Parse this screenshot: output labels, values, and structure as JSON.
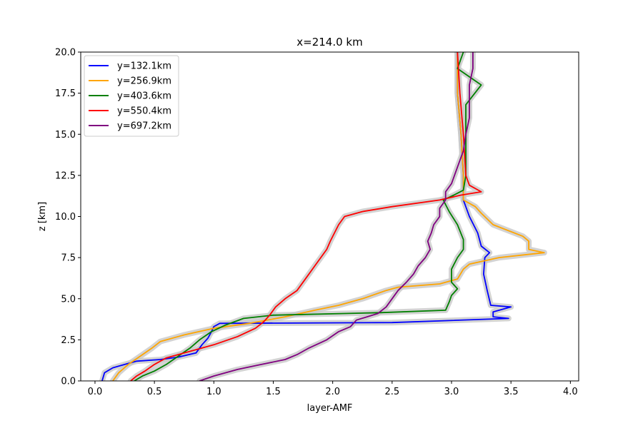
{
  "chart_data": {
    "type": "line",
    "title": "x=214.0 km",
    "xlabel": "layer-AMF",
    "ylabel": "z [km]",
    "xlim": [
      -0.12,
      4.07
    ],
    "ylim": [
      0,
      20
    ],
    "xticks": [
      "0.0",
      "0.5",
      "1.0",
      "1.5",
      "2.0",
      "2.5",
      "3.0",
      "3.5",
      "4.0"
    ],
    "yticks": [
      "0.0",
      "2.5",
      "5.0",
      "7.5",
      "10.0",
      "12.5",
      "15.0",
      "17.5",
      "20.0"
    ],
    "legend_position": "top-left",
    "uncertainty_band_color": "#c8c8c8",
    "series": [
      {
        "name": "y=132.1km",
        "color": "#0000ff",
        "points": [
          [
            0.06,
            0
          ],
          [
            0.08,
            0.5
          ],
          [
            0.15,
            0.8
          ],
          [
            0.25,
            1.0
          ],
          [
            0.35,
            1.2
          ],
          [
            0.55,
            1.3
          ],
          [
            0.7,
            1.45
          ],
          [
            0.85,
            1.7
          ],
          [
            0.9,
            2.2
          ],
          [
            0.95,
            2.6
          ],
          [
            0.98,
            3.0
          ],
          [
            1.0,
            3.3
          ],
          [
            1.05,
            3.5
          ],
          [
            2.5,
            3.55
          ],
          [
            3.48,
            3.8
          ],
          [
            3.35,
            3.9
          ],
          [
            3.35,
            4.2
          ],
          [
            3.5,
            4.5
          ],
          [
            3.33,
            4.6
          ],
          [
            3.3,
            5.5
          ],
          [
            3.27,
            6.5
          ],
          [
            3.28,
            7.5
          ],
          [
            3.32,
            7.8
          ],
          [
            3.25,
            8.2
          ],
          [
            3.22,
            9.0
          ],
          [
            3.15,
            10.0
          ],
          [
            3.1,
            11.0
          ],
          [
            3.1,
            12.5
          ],
          [
            3.08,
            15.0
          ],
          [
            3.05,
            17.5
          ],
          [
            3.05,
            20.0
          ]
        ]
      },
      {
        "name": "y=256.9km",
        "color": "#ffa500",
        "points": [
          [
            0.15,
            0
          ],
          [
            0.2,
            0.5
          ],
          [
            0.28,
            1.0
          ],
          [
            0.38,
            1.5
          ],
          [
            0.48,
            2.0
          ],
          [
            0.55,
            2.4
          ],
          [
            0.75,
            2.8
          ],
          [
            1.0,
            3.2
          ],
          [
            1.3,
            3.5
          ],
          [
            1.6,
            3.9
          ],
          [
            1.85,
            4.3
          ],
          [
            2.05,
            4.6
          ],
          [
            2.25,
            5.0
          ],
          [
            2.45,
            5.5
          ],
          [
            2.55,
            5.7
          ],
          [
            2.9,
            5.9
          ],
          [
            3.05,
            6.2
          ],
          [
            3.1,
            6.8
          ],
          [
            3.15,
            7.1
          ],
          [
            3.4,
            7.5
          ],
          [
            3.78,
            7.8
          ],
          [
            3.65,
            8.0
          ],
          [
            3.65,
            8.5
          ],
          [
            3.6,
            8.8
          ],
          [
            3.35,
            9.5
          ],
          [
            3.25,
            10.2
          ],
          [
            3.2,
            10.6
          ],
          [
            3.1,
            11.0
          ],
          [
            3.1,
            12.5
          ],
          [
            3.08,
            15.0
          ],
          [
            3.05,
            17.5
          ],
          [
            3.05,
            20.0
          ]
        ]
      },
      {
        "name": "y=403.6km",
        "color": "#008000",
        "points": [
          [
            0.33,
            0
          ],
          [
            0.4,
            0.3
          ],
          [
            0.5,
            0.6
          ],
          [
            0.6,
            1.0
          ],
          [
            0.7,
            1.5
          ],
          [
            0.8,
            2.0
          ],
          [
            0.88,
            2.5
          ],
          [
            0.98,
            3.0
          ],
          [
            1.1,
            3.4
          ],
          [
            1.25,
            3.8
          ],
          [
            1.5,
            4.0
          ],
          [
            2.4,
            4.15
          ],
          [
            2.95,
            4.3
          ],
          [
            2.98,
            4.8
          ],
          [
            3.0,
            5.2
          ],
          [
            3.05,
            5.6
          ],
          [
            3.0,
            6.0
          ],
          [
            3.0,
            6.8
          ],
          [
            3.05,
            7.5
          ],
          [
            3.1,
            8.0
          ],
          [
            3.1,
            8.6
          ],
          [
            3.05,
            9.5
          ],
          [
            2.98,
            10.3
          ],
          [
            2.93,
            11.0
          ],
          [
            3.02,
            11.3
          ],
          [
            3.1,
            11.6
          ],
          [
            3.12,
            12.5
          ],
          [
            3.12,
            15.0
          ],
          [
            3.12,
            16.0
          ],
          [
            3.12,
            16.8
          ],
          [
            3.25,
            18.0
          ],
          [
            3.05,
            19.0
          ],
          [
            3.1,
            20.0
          ]
        ]
      },
      {
        "name": "y=550.4km",
        "color": "#ff0000",
        "points": [
          [
            0.3,
            0
          ],
          [
            0.35,
            0.3
          ],
          [
            0.42,
            0.6
          ],
          [
            0.5,
            1.0
          ],
          [
            0.6,
            1.4
          ],
          [
            0.8,
            1.8
          ],
          [
            1.0,
            2.2
          ],
          [
            1.2,
            2.7
          ],
          [
            1.35,
            3.2
          ],
          [
            1.42,
            3.6
          ],
          [
            1.47,
            4.0
          ],
          [
            1.52,
            4.5
          ],
          [
            1.6,
            5.0
          ],
          [
            1.7,
            5.5
          ],
          [
            1.75,
            6.0
          ],
          [
            1.8,
            6.5
          ],
          [
            1.85,
            7.0
          ],
          [
            1.9,
            7.5
          ],
          [
            1.95,
            8.0
          ],
          [
            1.98,
            8.5
          ],
          [
            2.05,
            9.5
          ],
          [
            2.1,
            10.0
          ],
          [
            2.25,
            10.3
          ],
          [
            2.5,
            10.6
          ],
          [
            2.9,
            11.0
          ],
          [
            3.08,
            11.3
          ],
          [
            3.25,
            11.5
          ],
          [
            3.15,
            11.9
          ],
          [
            3.12,
            12.5
          ],
          [
            3.1,
            15.0
          ],
          [
            3.07,
            17.5
          ],
          [
            3.05,
            20.0
          ]
        ]
      },
      {
        "name": "y=697.2km",
        "color": "#800080",
        "points": [
          [
            0.88,
            0
          ],
          [
            1.0,
            0.3
          ],
          [
            1.2,
            0.7
          ],
          [
            1.4,
            1.0
          ],
          [
            1.6,
            1.3
          ],
          [
            1.7,
            1.6
          ],
          [
            1.8,
            2.0
          ],
          [
            1.95,
            2.5
          ],
          [
            2.05,
            3.0
          ],
          [
            2.15,
            3.3
          ],
          [
            2.2,
            3.7
          ],
          [
            2.38,
            4.1
          ],
          [
            2.45,
            4.5
          ],
          [
            2.5,
            5.0
          ],
          [
            2.55,
            5.5
          ],
          [
            2.62,
            6.0
          ],
          [
            2.68,
            6.5
          ],
          [
            2.72,
            7.0
          ],
          [
            2.78,
            7.5
          ],
          [
            2.82,
            8.0
          ],
          [
            2.8,
            8.5
          ],
          [
            2.83,
            9.0
          ],
          [
            2.85,
            9.5
          ],
          [
            2.9,
            10.0
          ],
          [
            2.9,
            10.5
          ],
          [
            2.95,
            11.0
          ],
          [
            2.95,
            11.5
          ],
          [
            3.0,
            12.0
          ],
          [
            3.05,
            13.0
          ],
          [
            3.1,
            14.0
          ],
          [
            3.12,
            15.0
          ],
          [
            3.15,
            16.0
          ],
          [
            3.15,
            17.0
          ],
          [
            3.15,
            18.0
          ],
          [
            3.18,
            19.0
          ],
          [
            3.18,
            20.0
          ]
        ]
      }
    ]
  }
}
